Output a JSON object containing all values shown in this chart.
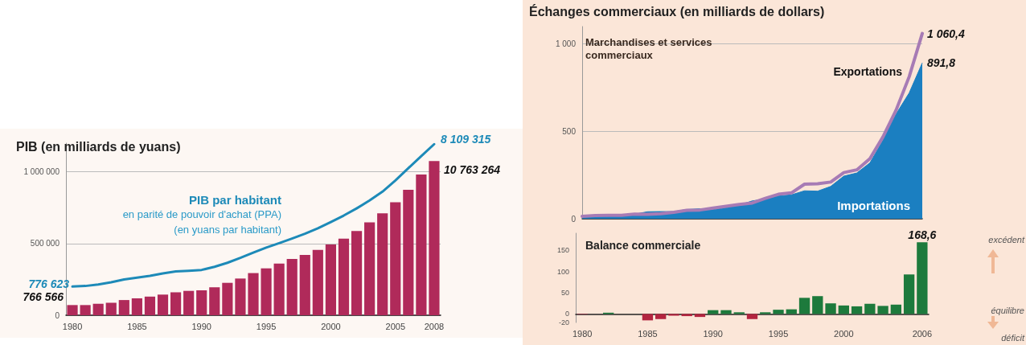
{
  "chart_data": [
    {
      "type": "bar",
      "title": "PIB (en milliards de yuans)",
      "categories": [
        "1980",
        null,
        null,
        null,
        null,
        "1985",
        null,
        null,
        null,
        null,
        "1990",
        null,
        null,
        null,
        null,
        "1995",
        null,
        null,
        null,
        null,
        "2000",
        null,
        null,
        null,
        null,
        "2005",
        null,
        null,
        "2008"
      ],
      "series": [
        {
          "type": "bar",
          "color": "#b02a5a",
          "values": [
            71000,
            71000,
            80000,
            87000,
            106000,
            118000,
            130000,
            144000,
            160000,
            170000,
            174000,
            195000,
            226000,
            256000,
            294000,
            327000,
            360000,
            393000,
            421000,
            456000,
            494000,
            534000,
            588000,
            647000,
            711000,
            788000,
            875000,
            981000,
            1075000
          ]
        },
        {
          "type": "line",
          "name": "PIB par habitant",
          "color": "#1d8ab8",
          "values": [
            200000,
            204000,
            214000,
            230000,
            250000,
            262000,
            275000,
            292000,
            305000,
            310000,
            316000,
            338000,
            366000,
            400000,
            437000,
            472000,
            503000,
            535000,
            568000,
            606000,
            650000,
            695000,
            745000,
            800000,
            862000,
            940000,
            1025000,
            1110000,
            1193000
          ]
        }
      ],
      "annotations": [
        "en parité de pouvoir d'achat (PPA)",
        "(en yuans par habitant)",
        "766 566",
        "10 763 264",
        "776 623",
        "8 109 315"
      ],
      "ylim": [
        0,
        1200000
      ],
      "yticks": [
        0,
        {
          "value": 500000,
          "label": "500 000"
        },
        {
          "value": 1000000,
          "label": "1 000 000"
        }
      ],
      "grid": "y",
      "legend": false,
      "marker": "none"
    },
    {
      "type": "area",
      "title": "Échanges commerciaux (en milliards de dollars)",
      "categories": [
        "1980",
        null,
        null,
        null,
        null,
        "1985",
        null,
        null,
        null,
        null,
        "1990",
        null,
        null,
        null,
        null,
        "1995",
        null,
        null,
        null,
        null,
        "2000",
        null,
        null,
        null,
        null,
        null,
        "2006"
      ],
      "series": [
        {
          "type": "line",
          "name": "Exportations",
          "color": "#a77bb5",
          "values": [
            14,
            18,
            20,
            20,
            26,
            25,
            29,
            37,
            48,
            50,
            61,
            71,
            82,
            90,
            117,
            140,
            148,
            198,
            200,
            210,
            264,
            280,
            344,
            469,
            622,
            813,
            1060.4
          ],
          "value_labels": [
            null,
            null,
            null,
            null,
            null,
            null,
            null,
            null,
            null,
            null,
            null,
            null,
            null,
            null,
            null,
            null,
            null,
            null,
            null,
            null,
            null,
            null,
            null,
            null,
            null,
            null,
            "1 060,4"
          ]
        },
        {
          "type": "area",
          "name": "Importations",
          "color": "#1b7fc1",
          "values": [
            15,
            18,
            17,
            20,
            26,
            40,
            41,
            41,
            53,
            57,
            52,
            62,
            78,
            102,
            113,
            130,
            137,
            160,
            158,
            185,
            244,
            262,
            320,
            450,
            600,
            720,
            891.8
          ],
          "value_labels": [
            null,
            null,
            null,
            null,
            null,
            null,
            null,
            null,
            null,
            null,
            null,
            null,
            null,
            null,
            null,
            null,
            null,
            null,
            null,
            null,
            null,
            null,
            null,
            null,
            null,
            null,
            "891,8"
          ]
        }
      ],
      "annotations": [
        "Marchandises et services commerciaux"
      ],
      "ylim": [
        0,
        1100
      ],
      "yticks": [
        0,
        500,
        {
          "value": 1000,
          "label": "1 000"
        }
      ],
      "grid": "y",
      "legend": false,
      "marker": "none",
      "tick_labels": "y"
    },
    {
      "type": "bar",
      "title": "Balance commerciale",
      "categories": [
        "1980",
        null,
        null,
        null,
        null,
        "1985",
        null,
        null,
        null,
        null,
        "1990",
        null,
        null,
        null,
        null,
        "1995",
        null,
        null,
        null,
        null,
        "2000",
        null,
        null,
        null,
        null,
        null,
        "2006"
      ],
      "values": [
        -1,
        0,
        3,
        0,
        0,
        -15,
        -12,
        -4,
        -5,
        -7,
        9,
        9,
        4,
        -12,
        4,
        10,
        11,
        38,
        42,
        25,
        20,
        18,
        24,
        19,
        22,
        93,
        168.6
      ],
      "colors": [
        "#b3243f",
        "#1d7a3c",
        "#1d7a3c",
        "#1d7a3c",
        "#1d7a3c",
        "#b3243f",
        "#b3243f",
        "#b3243f",
        "#b3243f",
        "#b3243f",
        "#1d7a3c",
        "#1d7a3c",
        "#1d7a3c",
        "#b3243f",
        "#1d7a3c",
        "#1d7a3c",
        "#1d7a3c",
        "#1d7a3c",
        "#1d7a3c",
        "#1d7a3c",
        "#1d7a3c",
        "#1d7a3c",
        "#1d7a3c",
        "#1d7a3c",
        "#1d7a3c",
        "#1d7a3c",
        "#1d7a3c"
      ],
      "value_labels": [
        null,
        null,
        null,
        null,
        null,
        null,
        null,
        null,
        null,
        null,
        null,
        null,
        null,
        null,
        null,
        null,
        null,
        null,
        null,
        null,
        null,
        null,
        null,
        null,
        null,
        null,
        "168,6"
      ],
      "annotations": [
        "excédent",
        "équilibre",
        "déficit"
      ],
      "ylim": [
        -20,
        190
      ],
      "yticks": [
        -20,
        0,
        50,
        100,
        150
      ],
      "grid": false,
      "legend": false
    }
  ]
}
